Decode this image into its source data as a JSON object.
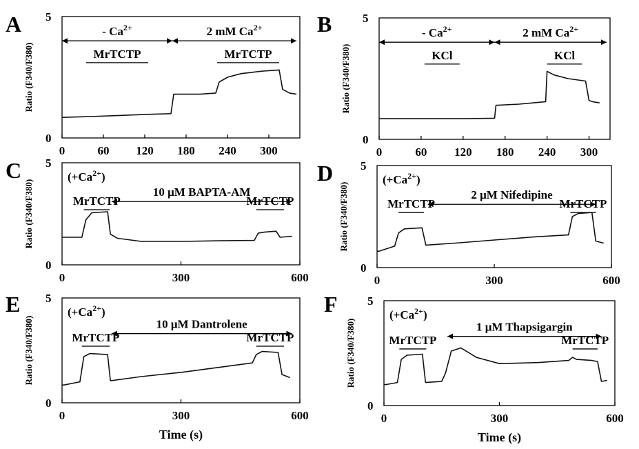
{
  "chart_data": [
    {
      "panel": "A",
      "type": "line",
      "ylabel": "Ratio (F340/F380)",
      "xlabel": "",
      "xlim": [
        0,
        345
      ],
      "ylim": [
        0,
        5
      ],
      "xticks": [
        "0",
        "60",
        "120",
        "180",
        "240",
        "300"
      ],
      "xtick_values": [
        0,
        60,
        120,
        180,
        240,
        300
      ],
      "yticks": [
        "0",
        "5"
      ],
      "ytick_values": [
        0,
        5
      ],
      "arrows": [
        {
          "label": "- Ca²⁺",
          "from": 0,
          "to": 160,
          "y": 4.0,
          "type": "double"
        },
        {
          "label": "2 mM Ca²⁺",
          "from": 160,
          "to": 340,
          "y": 4.0,
          "type": "double"
        }
      ],
      "bars": [
        {
          "label": "MrTCTP",
          "from": 35,
          "to": 125,
          "y": 3.1
        },
        {
          "label": "MrTCTP",
          "from": 225,
          "to": 315,
          "y": 3.1
        }
      ],
      "series": [
        {
          "x": [
            0,
            5,
            40,
            80,
            120,
            158,
            162,
            200,
            223,
            228,
            240,
            260,
            290,
            315,
            320,
            330,
            340
          ],
          "y": [
            0.85,
            0.85,
            0.88,
            0.92,
            0.97,
            1.0,
            1.8,
            1.8,
            1.85,
            2.3,
            2.5,
            2.65,
            2.75,
            2.8,
            2.0,
            1.85,
            1.8
          ]
        }
      ]
    },
    {
      "panel": "B",
      "type": "line",
      "ylabel": "Ratio (F340/F380)",
      "xlabel": "",
      "xlim": [
        0,
        330
      ],
      "ylim": [
        0,
        5
      ],
      "xticks": [
        "0",
        "60",
        "120",
        "180",
        "240",
        "300"
      ],
      "xtick_values": [
        0,
        60,
        120,
        180,
        240,
        300
      ],
      "yticks": [
        "0",
        "5"
      ],
      "ytick_values": [
        0,
        5
      ],
      "arrows": [
        {
          "label": "- Ca²⁺",
          "from": 0,
          "to": 165,
          "y": 4.0,
          "type": "double"
        },
        {
          "label": "2 mM Ca²⁺",
          "from": 165,
          "to": 325,
          "y": 4.0,
          "type": "double"
        }
      ],
      "bars": [
        {
          "label": "KCl",
          "from": 65,
          "to": 115,
          "y": 3.1
        },
        {
          "label": "KCl",
          "from": 240,
          "to": 290,
          "y": 3.1
        }
      ],
      "series": [
        {
          "x": [
            0,
            5,
            60,
            120,
            165,
            167,
            200,
            238,
            240,
            250,
            270,
            295,
            300,
            305,
            315
          ],
          "y": [
            0.85,
            0.85,
            0.85,
            0.85,
            0.87,
            1.4,
            1.45,
            1.55,
            2.8,
            2.65,
            2.5,
            2.4,
            1.6,
            1.55,
            1.5
          ]
        }
      ]
    },
    {
      "panel": "C",
      "type": "line",
      "ylabel": "Ratio (F340/F380)",
      "xlabel": "",
      "xlim": [
        0,
        600
      ],
      "ylim": [
        0,
        5
      ],
      "xticks": [
        "0",
        "300",
        "600"
      ],
      "xtick_values": [
        0,
        300,
        600
      ],
      "yticks": [
        "0",
        "5"
      ],
      "ytick_values": [
        0,
        5
      ],
      "inset": "(+Ca²⁺)",
      "arrows": [
        {
          "label": "10 μM BAPTA-AM",
          "from": 125,
          "to": 580,
          "y": 3.1,
          "type": "double"
        }
      ],
      "bars": [
        {
          "label": "MrTCTP",
          "from": 55,
          "to": 120,
          "y": 2.7
        },
        {
          "label": "MrTCTP",
          "from": 490,
          "to": 560,
          "y": 2.7
        }
      ],
      "series": [
        {
          "x": [
            0,
            50,
            60,
            75,
            115,
            122,
            140,
            200,
            300,
            400,
            485,
            495,
            510,
            540,
            550,
            580
          ],
          "y": [
            1.35,
            1.35,
            2.2,
            2.55,
            2.6,
            1.5,
            1.3,
            1.15,
            1.15,
            1.18,
            1.2,
            1.55,
            1.6,
            1.65,
            1.35,
            1.4
          ]
        }
      ]
    },
    {
      "panel": "D",
      "type": "line",
      "ylabel": "Ratio (F340/F380)",
      "xlabel": "",
      "xlim": [
        0,
        600
      ],
      "ylim": [
        0,
        5
      ],
      "xticks": [
        "0",
        "300",
        "600"
      ],
      "xtick_values": [
        0,
        300,
        600
      ],
      "yticks": [
        "0",
        "5"
      ],
      "ytick_values": [
        0,
        5
      ],
      "inset": "(+Ca²⁺)",
      "arrows": [
        {
          "label": "2 μM Nifedipine",
          "from": 130,
          "to": 560,
          "y": 3.1,
          "type": "double"
        }
      ],
      "bars": [
        {
          "label": "MrTCTP",
          "from": 55,
          "to": 120,
          "y": 2.7
        },
        {
          "label": "MrTCTP",
          "from": 495,
          "to": 560,
          "y": 2.7
        }
      ],
      "series": [
        {
          "x": [
            0,
            5,
            45,
            55,
            70,
            115,
            125,
            200,
            300,
            400,
            490,
            500,
            515,
            550,
            560,
            580
          ],
          "y": [
            0.8,
            0.8,
            1.05,
            1.7,
            1.9,
            1.95,
            1.1,
            1.2,
            1.35,
            1.5,
            1.6,
            2.5,
            2.65,
            2.7,
            1.3,
            1.2
          ]
        }
      ]
    },
    {
      "panel": "E",
      "type": "line",
      "ylabel": "Ratio (F340/F380)",
      "xlabel": "Time (s)",
      "xlim": [
        0,
        600
      ],
      "ylim": [
        0,
        5
      ],
      "xticks": [
        "0",
        "300",
        "600"
      ],
      "xtick_values": [
        0,
        300,
        600
      ],
      "yticks": [
        "0",
        "5"
      ],
      "ytick_values": [
        0,
        5
      ],
      "inset": "(+Ca²⁺)",
      "arrows": [
        {
          "label": "10 μM Dantrolene",
          "from": 125,
          "to": 580,
          "y": 3.3,
          "type": "double"
        }
      ],
      "bars": [
        {
          "label": "MrTCTP",
          "from": 50,
          "to": 120,
          "y": 2.7
        },
        {
          "label": "MrTCTP",
          "from": 490,
          "to": 560,
          "y": 2.7
        }
      ],
      "series": [
        {
          "x": [
            0,
            5,
            45,
            55,
            70,
            115,
            122,
            200,
            300,
            400,
            480,
            490,
            505,
            545,
            555,
            575
          ],
          "y": [
            0.85,
            0.85,
            1.0,
            2.2,
            2.35,
            2.3,
            1.05,
            1.25,
            1.45,
            1.7,
            1.9,
            2.3,
            2.45,
            2.4,
            1.35,
            1.2
          ]
        }
      ]
    },
    {
      "panel": "F",
      "type": "line",
      "ylabel": "Ratio (F340/F380)",
      "xlabel": "Time (s)",
      "xlim": [
        0,
        600
      ],
      "ylim": [
        0,
        5
      ],
      "xticks": [
        "0",
        "300",
        "600"
      ],
      "xtick_values": [
        0,
        300,
        600
      ],
      "yticks": [
        "0",
        "5"
      ],
      "ytick_values": [
        0,
        5
      ],
      "inset": "(+Ca²⁺)",
      "arrows": [
        {
          "label": "1 μM Thapsigargin",
          "from": 165,
          "to": 565,
          "y": 3.3,
          "type": "double"
        }
      ],
      "bars": [
        {
          "label": "MrTCTP",
          "from": 40,
          "to": 110,
          "y": 2.7
        },
        {
          "label": "MrTCTP",
          "from": 490,
          "to": 555,
          "y": 2.7
        }
      ],
      "series": [
        {
          "x": [
            0,
            5,
            35,
            45,
            60,
            100,
            108,
            150,
            160,
            175,
            200,
            240,
            300,
            400,
            480,
            490,
            500,
            540,
            555,
            565,
            580
          ],
          "y": [
            1.0,
            1.0,
            1.1,
            2.2,
            2.4,
            2.45,
            1.1,
            1.15,
            1.55,
            2.6,
            2.75,
            2.3,
            2.0,
            2.05,
            2.15,
            2.3,
            2.2,
            2.15,
            2.1,
            1.15,
            1.2
          ]
        }
      ]
    }
  ]
}
